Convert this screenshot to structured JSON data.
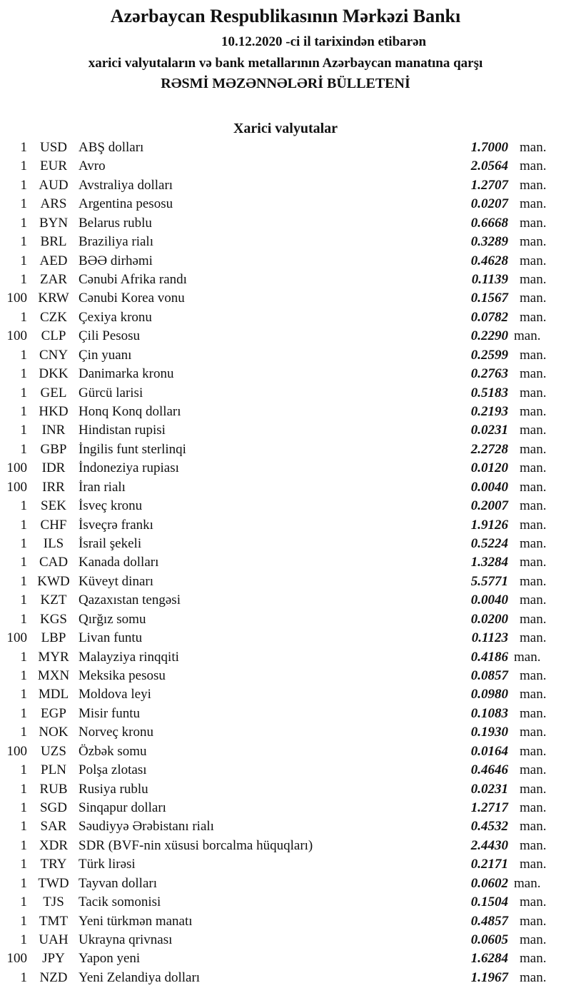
{
  "header": {
    "bank": "Azərbaycan Respublikasının Mərkəzi Bankı",
    "date_line": "10.12.2020 -ci il tarixindən etibarən",
    "subtitle": "xarici valyutaların və bank metallarının Azərbaycan manatına qarşı",
    "title": "RƏSMİ MƏZƏNNƏLƏRİ BÜLLETENİ",
    "section": "Xarici valyutalar"
  },
  "unit": "man.",
  "rates": [
    {
      "n": "1",
      "code": "USD",
      "name": "ABŞ dolları",
      "rate": "1.7000"
    },
    {
      "n": "1",
      "code": "EUR",
      "name": "Avro",
      "rate": "2.0564"
    },
    {
      "n": "1",
      "code": "AUD",
      "name": "Avstraliya dolları",
      "rate": "1.2707"
    },
    {
      "n": "1",
      "code": "ARS",
      "name": "Argentina pesosu",
      "rate": "0.0207"
    },
    {
      "n": "1",
      "code": "BYN",
      "name": "Belarus rublu",
      "rate": "0.6668"
    },
    {
      "n": "1",
      "code": "BRL",
      "name": "Braziliya rialı",
      "rate": "0.3289"
    },
    {
      "n": "1",
      "code": "AED",
      "name": "BƏƏ dirhəmi",
      "rate": "0.4628"
    },
    {
      "n": "1",
      "code": "ZAR",
      "name": "Cənubi Afrika randı",
      "rate": "0.1139"
    },
    {
      "n": "100",
      "code": "KRW",
      "name": "Cənubi Korea vonu",
      "rate": "0.1567"
    },
    {
      "n": "1",
      "code": "CZK",
      "name": "Çexiya kronu",
      "rate": "0.0782"
    },
    {
      "n": "100",
      "code": "CLP",
      "name": "Çili Pesosu",
      "rate": "0.2290"
    },
    {
      "n": "1",
      "code": "CNY",
      "name": "Çin yuanı",
      "rate": "0.2599"
    },
    {
      "n": "1",
      "code": "DKK",
      "name": "Danimarka kronu",
      "rate": "0.2763"
    },
    {
      "n": "1",
      "code": "GEL",
      "name": "Gürcü larisi",
      "rate": "0.5183"
    },
    {
      "n": "1",
      "code": "HKD",
      "name": "Honq Konq dolları",
      "rate": "0.2193"
    },
    {
      "n": "1",
      "code": "INR",
      "name": "Hindistan rupisi",
      "rate": "0.0231"
    },
    {
      "n": "1",
      "code": "GBP",
      "name": "İngilis funt sterlinqi",
      "rate": "2.2728"
    },
    {
      "n": "100",
      "code": "IDR",
      "name": "İndoneziya rupiası",
      "rate": "0.0120"
    },
    {
      "n": "100",
      "code": "IRR",
      "name": "İran rialı",
      "rate": "0.0040"
    },
    {
      "n": "1",
      "code": "SEK",
      "name": "İsveç kronu",
      "rate": "0.2007"
    },
    {
      "n": "1",
      "code": "CHF",
      "name": "İsveçrə frankı",
      "rate": "1.9126"
    },
    {
      "n": "1",
      "code": "ILS",
      "name": "İsrail şekeli",
      "rate": "0.5224"
    },
    {
      "n": "1",
      "code": "CAD",
      "name": "Kanada dolları",
      "rate": "1.3284"
    },
    {
      "n": "1",
      "code": "KWD",
      "name": "Küveyt dinarı",
      "rate": "5.5771"
    },
    {
      "n": "1",
      "code": "KZT",
      "name": "Qazaxıstan tengəsi",
      "rate": "0.0040"
    },
    {
      "n": "1",
      "code": "KGS",
      "name": "Qırğız somu",
      "rate": "0.0200"
    },
    {
      "n": "100",
      "code": "LBP",
      "name": "Livan funtu",
      "rate": "0.1123"
    },
    {
      "n": "1",
      "code": "MYR",
      "name": "Malayziya rinqqiti",
      "rate": "0.4186"
    },
    {
      "n": "1",
      "code": "MXN",
      "name": "Meksika pesosu",
      "rate": "0.0857"
    },
    {
      "n": "1",
      "code": "MDL",
      "name": "Moldova leyi",
      "rate": "0.0980"
    },
    {
      "n": "1",
      "code": "EGP",
      "name": "Misir funtu",
      "rate": "0.1083"
    },
    {
      "n": "1",
      "code": "NOK",
      "name": "Norveç kronu",
      "rate": "0.1930"
    },
    {
      "n": "100",
      "code": "UZS",
      "name": "Özbək somu",
      "rate": "0.0164"
    },
    {
      "n": "1",
      "code": "PLN",
      "name": "Polşa zlotası",
      "rate": "0.4646"
    },
    {
      "n": "1",
      "code": "RUB",
      "name": "Rusiya rublu",
      "rate": "0.0231"
    },
    {
      "n": "1",
      "code": "SGD",
      "name": "Sinqapur dolları",
      "rate": "1.2717"
    },
    {
      "n": "1",
      "code": "SAR",
      "name": "Səudiyyə Ərəbistanı rialı",
      "rate": "0.4532"
    },
    {
      "n": "1",
      "code": "XDR",
      "name": "SDR (BVF-nin xüsusi borcalma hüquqları)",
      "rate": "2.4430"
    },
    {
      "n": "1",
      "code": "TRY",
      "name": "Türk lirəsi",
      "rate": "0.2171"
    },
    {
      "n": "1",
      "code": "TWD",
      "name": "Tayvan dolları",
      "rate": "0.0602"
    },
    {
      "n": "1",
      "code": "TJS",
      "name": "Tacik somonisi",
      "rate": "0.1504"
    },
    {
      "n": "1",
      "code": "TMT",
      "name": "Yeni türkmən manatı",
      "rate": "0.4857"
    },
    {
      "n": "1",
      "code": "UAH",
      "name": "Ukrayna qrivnası",
      "rate": "0.0605"
    },
    {
      "n": "100",
      "code": "JPY",
      "name": "Yapon yeni",
      "rate": "1.6284"
    },
    {
      "n": "1",
      "code": "NZD",
      "name": "Yeni Zelandiya dolları",
      "rate": "1.1967"
    }
  ]
}
